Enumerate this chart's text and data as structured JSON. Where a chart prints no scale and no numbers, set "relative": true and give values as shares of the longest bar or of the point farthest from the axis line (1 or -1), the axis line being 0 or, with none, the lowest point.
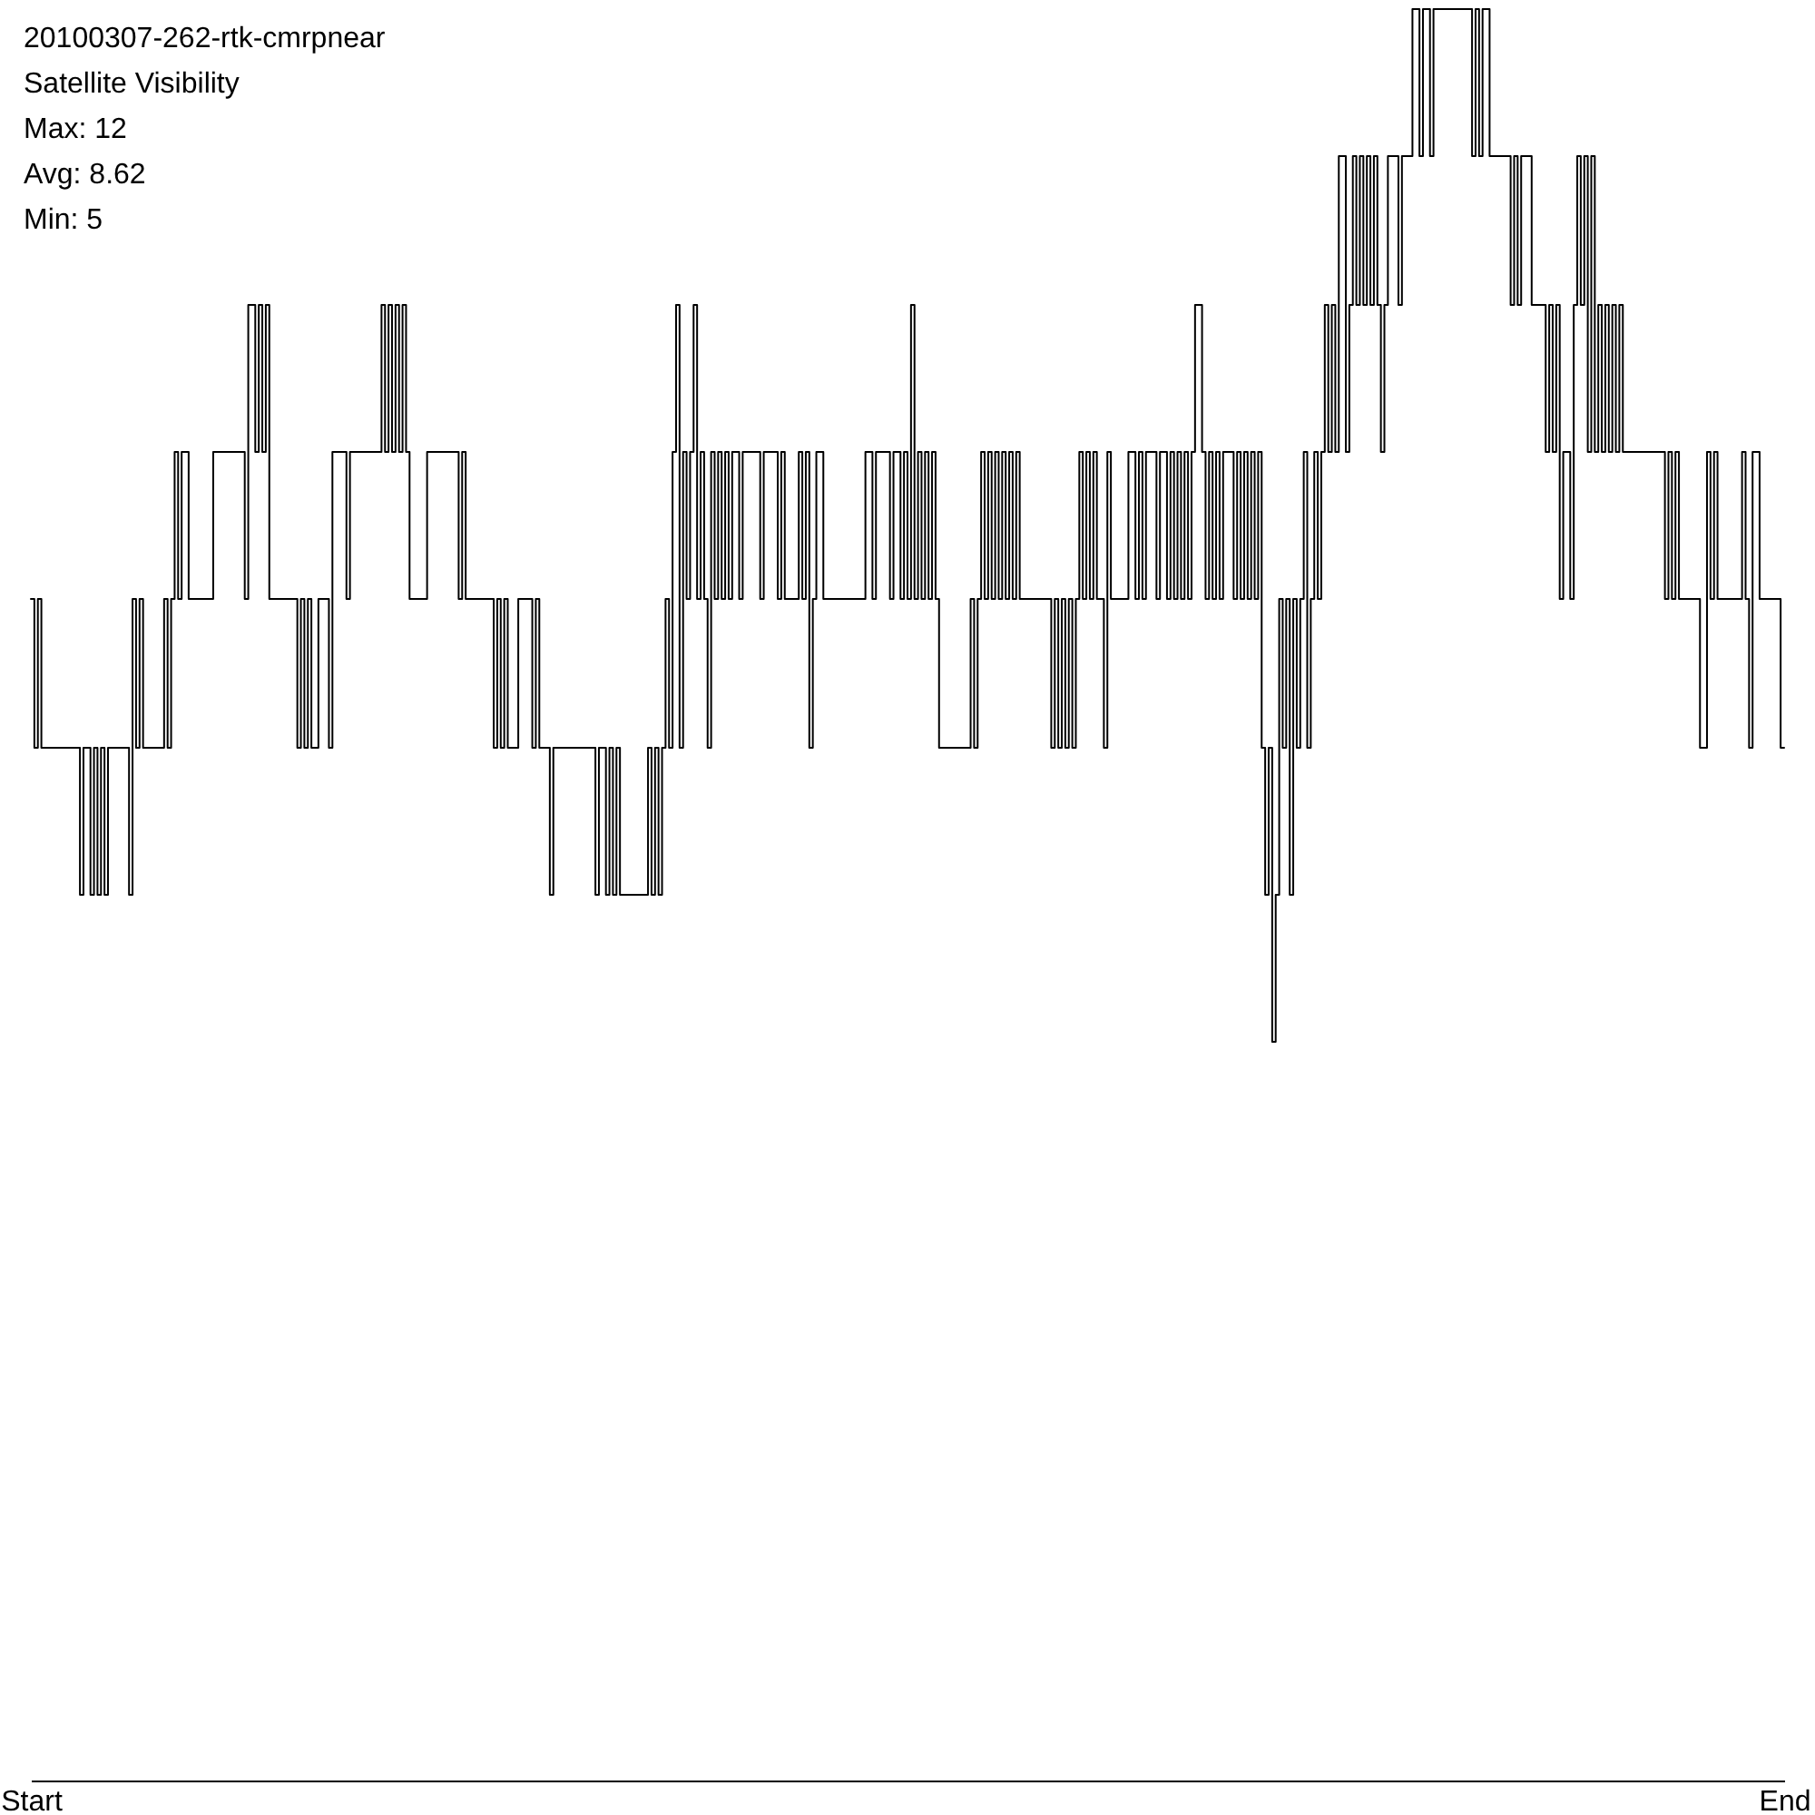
{
  "chart_data": {
    "type": "step",
    "title": "20100307-262-rtk-cmrpnear",
    "subtitle": "Satellite Visibility",
    "annotations": [
      "Max: 12",
      "Avg: 8.62",
      "Min: 5"
    ],
    "relative": true,
    "categories": [
      "Start",
      null,
      null,
      null,
      null,
      null,
      null,
      null,
      null,
      null,
      null,
      null,
      null,
      null,
      null,
      null,
      null,
      null,
      null,
      null,
      null,
      null,
      null,
      null,
      null,
      null,
      null,
      null,
      null,
      null,
      null,
      null,
      null,
      null,
      null,
      null,
      null,
      null,
      null,
      null,
      null,
      null,
      null,
      null,
      null,
      null,
      null,
      null,
      null,
      null,
      null,
      null,
      null,
      null,
      null,
      null,
      null,
      null,
      null,
      null,
      null,
      null,
      null,
      null,
      null,
      null,
      null,
      null,
      null,
      null,
      null,
      null,
      null,
      null,
      null,
      null,
      null,
      null,
      null,
      null,
      null,
      null,
      null,
      null,
      null,
      null,
      null,
      null,
      null,
      null,
      null,
      null,
      null,
      null,
      null,
      null,
      null,
      null,
      null,
      null,
      null,
      null,
      null,
      null,
      null,
      null,
      null,
      null,
      null,
      null,
      null,
      null,
      null,
      null,
      null,
      null,
      null,
      null,
      null,
      null,
      null,
      null,
      null,
      null,
      null,
      null,
      null,
      null,
      null,
      null,
      null,
      null,
      null,
      null,
      null,
      null,
      null,
      null,
      null,
      null,
      null,
      null,
      null,
      null,
      null,
      null,
      null,
      null,
      null,
      null,
      null,
      null,
      null,
      null,
      null,
      null,
      null,
      null,
      null,
      null,
      null,
      null,
      null,
      null,
      null,
      null,
      null,
      null,
      null,
      null,
      null,
      null,
      null,
      null,
      null,
      null,
      null,
      null,
      null,
      null,
      null,
      null,
      null,
      null,
      null,
      null,
      null,
      null,
      null,
      null,
      null,
      null,
      null,
      null,
      null,
      null,
      null,
      null,
      null,
      null,
      null,
      null,
      null,
      null,
      null,
      null,
      null,
      null,
      null,
      null,
      null,
      null,
      null,
      null,
      null,
      null,
      null,
      null,
      null,
      null,
      null,
      null,
      null,
      null,
      null,
      null,
      null,
      null,
      null,
      null,
      null,
      null,
      null,
      null,
      null,
      null,
      null,
      null,
      null,
      null,
      null,
      null,
      null,
      null,
      null,
      null,
      null,
      null,
      null,
      null,
      null,
      null,
      null,
      null,
      null,
      null,
      null,
      null,
      null,
      null,
      null,
      null,
      null,
      null,
      null,
      null,
      null,
      null,
      null,
      null,
      null,
      null,
      null,
      null,
      null,
      null,
      null,
      null,
      null,
      null,
      null,
      null,
      null,
      null,
      null,
      null,
      null,
      null,
      null,
      null,
      null,
      null,
      null,
      null,
      null,
      null,
      null,
      null,
      null,
      null,
      null,
      null,
      null,
      null,
      null,
      null,
      null,
      null,
      null,
      null,
      null,
      null,
      null,
      null,
      null,
      null,
      null,
      null,
      null,
      null,
      null,
      null,
      null,
      null,
      null,
      null,
      null,
      null,
      null,
      null,
      null,
      null,
      null,
      null,
      null,
      null,
      null,
      null,
      null,
      null,
      null,
      null,
      null,
      null,
      null,
      null,
      null,
      null,
      null,
      null,
      null,
      null,
      null,
      null,
      null,
      null,
      null,
      null,
      null,
      null,
      null,
      null,
      null,
      null,
      null,
      null,
      null,
      null,
      null,
      null,
      null,
      null,
      null,
      null,
      null,
      null,
      null,
      null,
      null,
      null,
      null,
      null,
      null,
      null,
      null,
      null,
      null,
      null,
      null,
      null,
      null,
      null,
      null,
      null,
      null,
      null,
      null,
      null,
      null,
      null,
      null,
      null,
      null,
      null,
      null,
      null,
      null,
      null,
      null,
      null,
      null,
      null,
      null,
      null,
      null,
      null,
      null,
      null,
      null,
      null,
      null,
      null,
      null,
      null,
      null,
      null,
      null,
      null,
      null,
      null,
      null,
      null,
      null,
      null,
      null,
      null,
      null,
      null,
      null,
      null,
      null,
      null,
      null,
      null,
      null,
      null,
      null,
      null,
      null,
      null,
      null,
      null,
      null,
      null,
      null,
      null,
      null,
      null,
      null,
      null,
      null,
      null,
      null,
      null,
      null,
      null,
      null,
      null,
      null,
      null,
      null,
      null,
      null,
      null,
      null,
      null,
      null,
      null,
      null,
      null,
      null,
      null,
      null,
      null,
      null,
      null,
      null,
      null,
      null,
      null,
      null,
      null,
      null,
      null,
      null,
      null,
      null,
      null,
      null,
      null,
      "End"
    ],
    "series": [
      {
        "color": "#000000",
        "values": [
          0.667,
          0.583,
          0.667,
          0.583,
          0.583,
          0.583,
          0.583,
          0.583,
          0.583,
          0.583,
          0.583,
          0.583,
          0.583,
          0.583,
          0.5,
          0.583,
          0.583,
          0.5,
          0.583,
          0.5,
          0.583,
          0.5,
          0.583,
          0.583,
          0.583,
          0.583,
          0.583,
          0.583,
          0.5,
          0.667,
          0.583,
          0.667,
          0.583,
          0.583,
          0.583,
          0.583,
          0.583,
          0.583,
          0.667,
          0.583,
          0.667,
          0.75,
          0.667,
          0.75,
          0.75,
          0.667,
          0.667,
          0.667,
          0.667,
          0.667,
          0.667,
          0.667,
          0.75,
          0.75,
          0.75,
          0.75,
          0.75,
          0.75,
          0.75,
          0.75,
          0.75,
          0.667,
          0.833,
          0.833,
          0.75,
          0.833,
          0.75,
          0.833,
          0.667,
          0.667,
          0.667,
          0.667,
          0.667,
          0.667,
          0.667,
          0.667,
          0.583,
          0.667,
          0.583,
          0.667,
          0.583,
          0.583,
          0.667,
          0.667,
          0.667,
          0.583,
          0.75,
          0.75,
          0.75,
          0.75,
          0.667,
          0.75,
          0.75,
          0.75,
          0.75,
          0.75,
          0.75,
          0.75,
          0.75,
          0.75,
          0.833,
          0.75,
          0.833,
          0.75,
          0.833,
          0.75,
          0.833,
          0.75,
          0.667,
          0.667,
          0.667,
          0.667,
          0.667,
          0.75,
          0.75,
          0.75,
          0.75,
          0.75,
          0.75,
          0.75,
          0.75,
          0.75,
          0.667,
          0.75,
          0.667,
          0.667,
          0.667,
          0.667,
          0.667,
          0.667,
          0.667,
          0.667,
          0.583,
          0.667,
          0.583,
          0.667,
          0.583,
          0.583,
          0.583,
          0.667,
          0.667,
          0.667,
          0.667,
          0.583,
          0.667,
          0.583,
          0.583,
          0.583,
          0.5,
          0.583,
          0.583,
          0.583,
          0.583,
          0.583,
          0.583,
          0.583,
          0.583,
          0.583,
          0.583,
          0.583,
          0.583,
          0.5,
          0.583,
          0.583,
          0.5,
          0.583,
          0.5,
          0.583,
          0.5,
          0.5,
          0.5,
          0.5,
          0.5,
          0.5,
          0.5,
          0.5,
          0.583,
          0.5,
          0.583,
          0.5,
          0.583,
          0.667,
          0.583,
          0.75,
          0.833,
          0.583,
          0.75,
          0.667,
          0.75,
          0.833,
          0.667,
          0.75,
          0.667,
          0.583,
          0.75,
          0.667,
          0.75,
          0.667,
          0.75,
          0.667,
          0.75,
          0.75,
          0.667,
          0.75,
          0.75,
          0.75,
          0.75,
          0.75,
          0.667,
          0.75,
          0.75,
          0.75,
          0.75,
          0.667,
          0.75,
          0.667,
          0.667,
          0.667,
          0.667,
          0.75,
          0.667,
          0.75,
          0.583,
          0.667,
          0.75,
          0.75,
          0.667,
          0.667,
          0.667,
          0.667,
          0.667,
          0.667,
          0.667,
          0.667,
          0.667,
          0.667,
          0.667,
          0.667,
          0.75,
          0.75,
          0.667,
          0.75,
          0.75,
          0.75,
          0.75,
          0.667,
          0.75,
          0.75,
          0.667,
          0.75,
          0.667,
          0.833,
          0.667,
          0.75,
          0.667,
          0.75,
          0.667,
          0.75,
          0.667,
          0.583,
          0.583,
          0.583,
          0.583,
          0.583,
          0.583,
          0.583,
          0.583,
          0.583,
          0.667,
          0.583,
          0.667,
          0.75,
          0.667,
          0.75,
          0.667,
          0.75,
          0.667,
          0.75,
          0.667,
          0.75,
          0.667,
          0.75,
          0.667,
          0.667,
          0.667,
          0.667,
          0.667,
          0.667,
          0.667,
          0.667,
          0.667,
          0.583,
          0.667,
          0.583,
          0.667,
          0.583,
          0.667,
          0.583,
          0.667,
          0.75,
          0.667,
          0.75,
          0.667,
          0.75,
          0.667,
          0.667,
          0.583,
          0.75,
          0.667,
          0.667,
          0.667,
          0.667,
          0.667,
          0.75,
          0.75,
          0.667,
          0.75,
          0.667,
          0.75,
          0.75,
          0.75,
          0.667,
          0.75,
          0.75,
          0.667,
          0.75,
          0.667,
          0.75,
          0.667,
          0.75,
          0.667,
          0.75,
          0.833,
          0.833,
          0.75,
          0.667,
          0.75,
          0.667,
          0.75,
          0.667,
          0.75,
          0.75,
          0.75,
          0.667,
          0.75,
          0.667,
          0.75,
          0.667,
          0.75,
          0.667,
          0.75,
          0.583,
          0.5,
          0.583,
          0.417,
          0.5,
          0.667,
          0.583,
          0.667,
          0.5,
          0.667,
          0.583,
          0.667,
          0.75,
          0.583,
          0.667,
          0.75,
          0.667,
          0.75,
          0.833,
          0.75,
          0.833,
          0.75,
          0.917,
          0.917,
          0.75,
          0.833,
          0.917,
          0.833,
          0.917,
          0.833,
          0.917,
          0.833,
          0.917,
          0.833,
          0.75,
          0.833,
          0.917,
          0.917,
          0.917,
          0.833,
          0.917,
          0.917,
          0.917,
          1,
          1,
          0.917,
          1,
          1,
          0.917,
          1,
          1,
          1,
          1,
          1,
          1,
          1,
          1,
          1,
          1,
          1,
          0.917,
          1,
          0.917,
          1,
          1,
          0.917,
          0.917,
          0.917,
          0.917,
          0.917,
          0.917,
          0.833,
          0.917,
          0.833,
          0.917,
          0.917,
          0.917,
          0.833,
          0.833,
          0.833,
          0.833,
          0.75,
          0.833,
          0.75,
          0.833,
          0.667,
          0.75,
          0.75,
          0.667,
          0.833,
          0.917,
          0.833,
          0.917,
          0.75,
          0.917,
          0.75,
          0.833,
          0.75,
          0.833,
          0.75,
          0.833,
          0.75,
          0.833,
          0.75,
          0.75,
          0.75,
          0.75,
          0.75,
          0.75,
          0.75,
          0.75,
          0.75,
          0.75,
          0.75,
          0.75,
          0.667,
          0.75,
          0.667,
          0.75,
          0.667,
          0.667,
          0.667,
          0.667,
          0.667,
          0.667,
          0.583,
          0.583,
          0.75,
          0.667,
          0.75,
          0.667,
          0.667,
          0.667,
          0.667,
          0.667,
          0.667,
          0.667,
          0.75,
          0.667,
          0.583,
          0.75,
          0.75,
          0.667,
          0.667,
          0.667,
          0.667,
          0.667,
          0.667,
          0.583,
          0.583
        ]
      }
    ]
  }
}
